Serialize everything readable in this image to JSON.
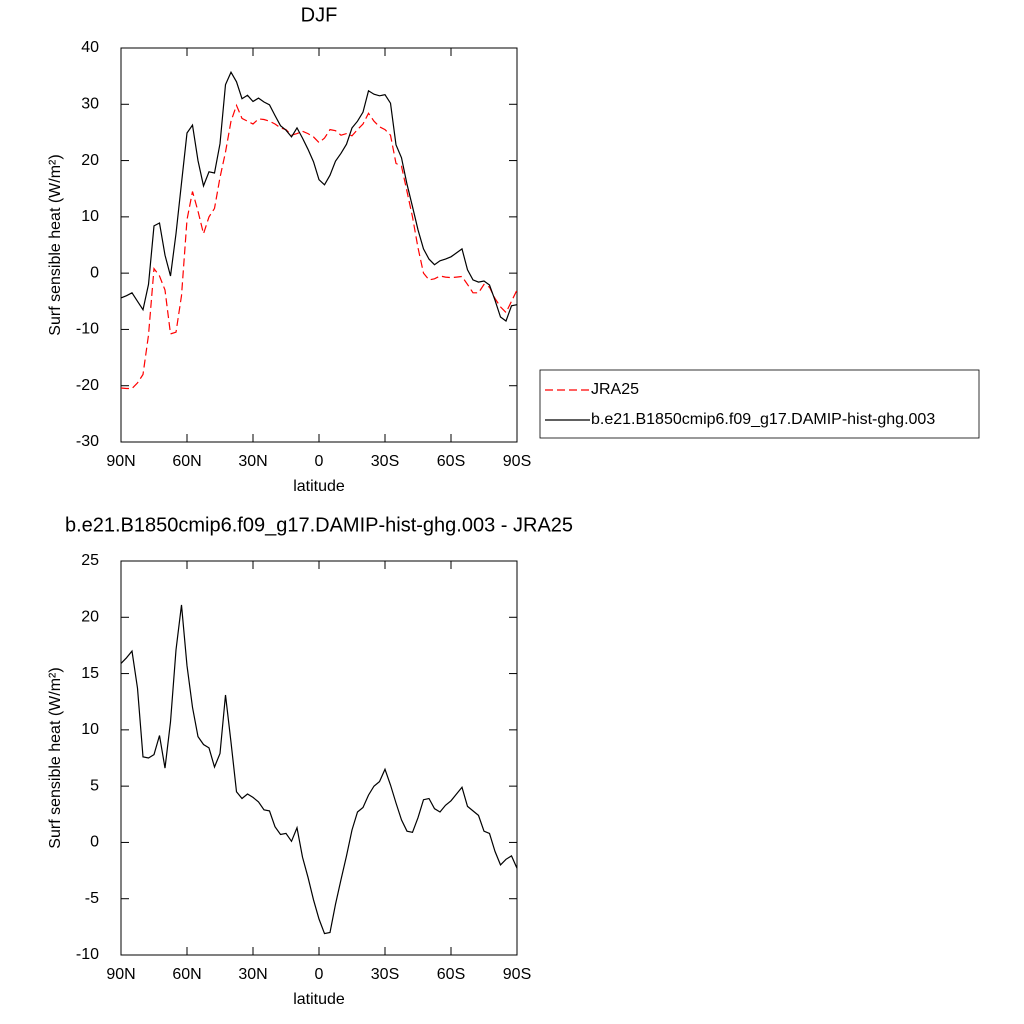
{
  "chart_data": [
    {
      "type": "line",
      "title": "DJF",
      "x_label": "latitude",
      "y_label": "Surf sensible heat (W/m²)",
      "x": [
        90,
        87.5,
        85,
        82.5,
        80,
        77.5,
        75,
        72.5,
        70,
        67.5,
        65,
        62.5,
        60,
        57.5,
        55,
        52.5,
        50,
        47.5,
        45,
        42.5,
        40,
        37.5,
        35,
        32.5,
        30,
        27.5,
        25,
        22.5,
        20,
        17.5,
        15,
        12.5,
        10,
        7.5,
        5,
        2.5,
        0,
        -2.5,
        -5,
        -7.5,
        -10,
        -12.5,
        -15,
        -17.5,
        -20,
        -22.5,
        -25,
        -27.5,
        -30,
        -32.5,
        -35,
        -37.5,
        -40,
        -42.5,
        -45,
        -47.5,
        -50,
        -52.5,
        -55,
        -57.5,
        -60,
        -62.5,
        -65,
        -67.5,
        -70,
        -72.5,
        -75,
        -77.5,
        -80,
        -82.5,
        -85,
        -87.5,
        -90
      ],
      "series": [
        {
          "name": "JRA25",
          "color": "#ff0000",
          "dash": true,
          "values": [
            -20.4,
            -20.5,
            -20.5,
            -19.5,
            -18,
            -11,
            0.8,
            -0.5,
            -3,
            -10.8,
            -10.5,
            -4,
            9.5,
            14.5,
            11,
            7,
            10,
            11.5,
            17,
            21.5,
            27,
            29.8,
            27.5,
            27,
            26.5,
            27.4,
            27.3,
            27,
            26.5,
            25.8,
            25.5,
            24.5,
            24.8,
            25.2,
            24.8,
            24.2,
            23.2,
            24,
            25.5,
            25.3,
            24.5,
            24.8,
            24.4,
            25.5,
            26.5,
            28.4,
            27,
            26,
            25.5,
            24.5,
            19.5,
            19,
            14.5,
            10,
            4.5,
            0,
            -1.2,
            -1,
            -0.5,
            -0.7,
            -0.8,
            -0.7,
            -0.6,
            -2,
            -3.5,
            -3.5,
            -2,
            -2.5,
            -4.5,
            -6,
            -7,
            -5,
            -3
          ]
        },
        {
          "name": "b.e21.B1850cmip6.f09_g17.DAMIP-hist-ghg.003",
          "color": "#000000",
          "dash": false,
          "values": [
            -4.4,
            -4,
            -3.5,
            -5,
            -6.5,
            -2,
            8.4,
            8.9,
            3.2,
            -0.5,
            7,
            16,
            24.9,
            26.3,
            20,
            15.5,
            18,
            17.8,
            23,
            33.5,
            35.7,
            34,
            31,
            31.6,
            30.5,
            31.1,
            30.4,
            29.9,
            28,
            26.2,
            25.4,
            24.2,
            25.8,
            24,
            22,
            19.8,
            16.6,
            15.7,
            17.4,
            19.9,
            21.3,
            22.9,
            25.8,
            27,
            28.6,
            32.4,
            31.8,
            31.5,
            31.7,
            30.2,
            22.8,
            20.5,
            15.8,
            11.8,
            7.7,
            4.3,
            2.5,
            1.5,
            2.2,
            2.5,
            2.9,
            3.6,
            4.3,
            0.6,
            -1.2,
            -1.6,
            -1.4,
            -2.1,
            -4.8,
            -7.8,
            -8.5,
            -5.8,
            -5.6
          ]
        }
      ],
      "xlim": [
        90,
        -90
      ],
      "xticks": [
        {
          "value": 90,
          "label": "90N"
        },
        {
          "value": 60,
          "label": "60N"
        },
        {
          "value": 30,
          "label": "30N"
        },
        0,
        {
          "value": -30,
          "label": "30S"
        },
        {
          "value": -60,
          "label": "60S"
        },
        {
          "value": -90,
          "label": "90S"
        }
      ],
      "ylim": [
        -30,
        40
      ],
      "yticks": [
        -30,
        -20,
        -10,
        0,
        10,
        20,
        30,
        40
      ],
      "legend": "outside-right"
    },
    {
      "type": "line",
      "title": "b.e21.B1850cmip6.f09_g17.DAMIP-hist-ghg.003 - JRA25",
      "x_label": "latitude",
      "y_label": "Surf sensible heat (W/m²)",
      "x": [
        90,
        87.5,
        85,
        82.5,
        80,
        77.5,
        75,
        72.5,
        70,
        67.5,
        65,
        62.5,
        60,
        57.5,
        55,
        52.5,
        50,
        47.5,
        45,
        42.5,
        40,
        37.5,
        35,
        32.5,
        30,
        27.5,
        25,
        22.5,
        20,
        17.5,
        15,
        12.5,
        10,
        7.5,
        5,
        2.5,
        0,
        -2.5,
        -5,
        -7.5,
        -10,
        -12.5,
        -15,
        -17.5,
        -20,
        -22.5,
        -25,
        -27.5,
        -30,
        -32.5,
        -35,
        -37.5,
        -40,
        -42.5,
        -45,
        -47.5,
        -50,
        -52.5,
        -55,
        -57.5,
        -60,
        -62.5,
        -65,
        -67.5,
        -70,
        -72.5,
        -75,
        -77.5,
        -80,
        -82.5,
        -85,
        -87.5,
        -90
      ],
      "values": [
        15.9,
        16.4,
        17,
        13.7,
        7.6,
        7.5,
        7.8,
        9.5,
        6.6,
        10.7,
        17.1,
        21.1,
        15.7,
        12,
        9.4,
        8.7,
        8.4,
        6.7,
        7.9,
        13.1,
        8.9,
        4.5,
        3.9,
        4.3,
        4,
        3.6,
        2.9,
        2.8,
        1.4,
        0.7,
        0.8,
        0.1,
        1.3,
        -1.3,
        -3.1,
        -5.1,
        -6.8,
        -8.1,
        -8,
        -5.5,
        -3.3,
        -1.2,
        1.1,
        2.7,
        3.1,
        4.2,
        5,
        5.4,
        6.5,
        5.1,
        3.5,
        2,
        1,
        0.9,
        2.2,
        3.8,
        3.9,
        3,
        2.7,
        3.3,
        3.7,
        4.3,
        4.9,
        3.2,
        2.8,
        2.4,
        1,
        0.8,
        -0.8,
        -2,
        -1.5,
        -1.2,
        -2.3
      ],
      "color": "#000000",
      "xlim": [
        90,
        -90
      ],
      "xticks": [
        {
          "value": 90,
          "label": "90N"
        },
        {
          "value": 60,
          "label": "60N"
        },
        {
          "value": 30,
          "label": "30N"
        },
        0,
        {
          "value": -30,
          "label": "30S"
        },
        {
          "value": -60,
          "label": "60S"
        },
        {
          "value": -90,
          "label": "90S"
        }
      ],
      "ylim": [
        -10,
        25
      ],
      "yticks": [
        -10,
        -5,
        0,
        5,
        10,
        15,
        20,
        25
      ]
    }
  ]
}
